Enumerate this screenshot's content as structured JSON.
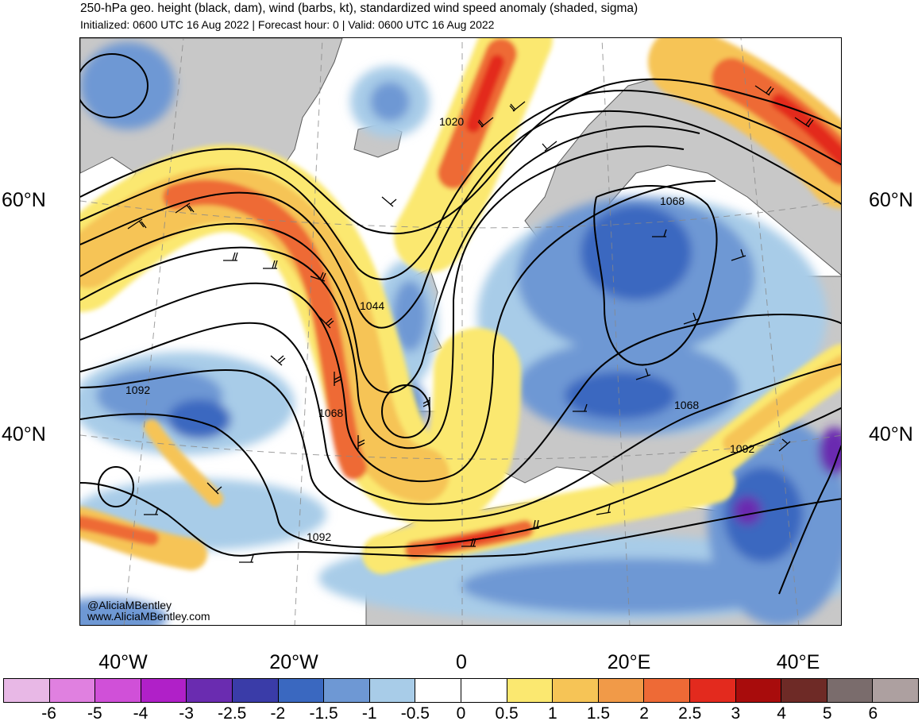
{
  "title": "250-hPa geo. height (black, dam), wind (barbs, kt), standardized wind speed anomaly (shaded, sigma)",
  "subtitle": "Initialized: 0600 UTC 16 Aug 2022 | Forecast hour: 0 | Valid: 0600 UTC 16 Aug 2022",
  "map": {
    "lat_labels": [
      "60°N",
      "40°N"
    ],
    "lon_labels": [
      "40°W",
      "20°W",
      "0",
      "20°E",
      "40°E"
    ],
    "contour_labels": [
      "1020",
      "1044",
      "1068",
      "1068",
      "1068",
      "1092",
      "1092",
      "1092"
    ],
    "credit_handle": "@AliciaMBentley",
    "credit_url": "www.AliciaMBentley.com",
    "land_color": "#c8c8c8",
    "coast_color": "#555555",
    "contour_color": "#000000"
  },
  "colorbar": {
    "labels": [
      "-6",
      "-5",
      "-4",
      "-3",
      "-2.5",
      "-2",
      "-1.5",
      "-1",
      "-0.5",
      "0",
      "0.5",
      "1",
      "1.5",
      "2",
      "2.5",
      "3",
      "4",
      "5",
      "6"
    ],
    "colors": [
      "#e8b8e6",
      "#e080e0",
      "#d050d8",
      "#b020c8",
      "#6a2cb0",
      "#3a3ca8",
      "#3a68c0",
      "#6e98d4",
      "#a8cce8",
      "#ffffff",
      "#ffffff",
      "#fbe870",
      "#f6c456",
      "#f19a48",
      "#ee6a36",
      "#e32a1e",
      "#a80c0c",
      "#6e2a26",
      "#7a6c6c",
      "#ada0a0"
    ]
  }
}
